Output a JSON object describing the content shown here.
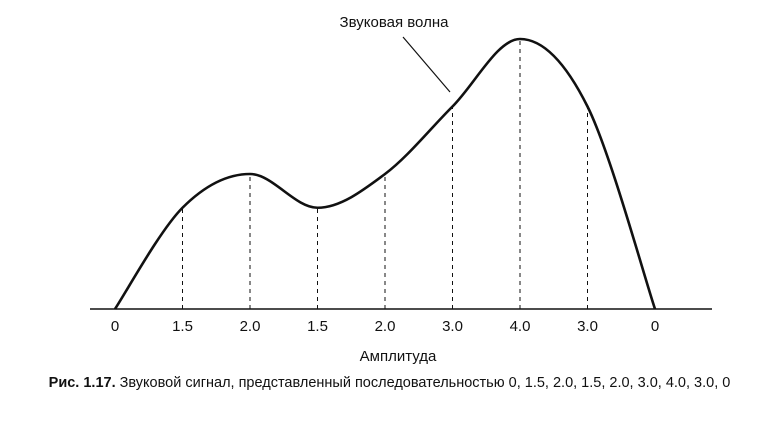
{
  "figure": {
    "callout": "Звуковая волна",
    "axis_title": "Амплитуда",
    "caption_label": "Рис. 1.17.",
    "caption_text": "Звуковой сигнал, представленный последовательностью 0, 1.5, 2.0, 1.5, 2.0, 3.0, 4.0, 3.0, 0"
  },
  "chart_data": {
    "type": "line",
    "categories": [
      "0",
      "1.5",
      "2.0",
      "1.5",
      "2.0",
      "3.0",
      "4.0",
      "3.0",
      "0"
    ],
    "values": [
      0,
      1.5,
      2.0,
      1.5,
      2.0,
      3.0,
      4.0,
      3.0,
      0
    ],
    "title": "",
    "xlabel": "Амплитуда",
    "ylabel": "",
    "grid": false,
    "sample_lines": "dashed"
  }
}
